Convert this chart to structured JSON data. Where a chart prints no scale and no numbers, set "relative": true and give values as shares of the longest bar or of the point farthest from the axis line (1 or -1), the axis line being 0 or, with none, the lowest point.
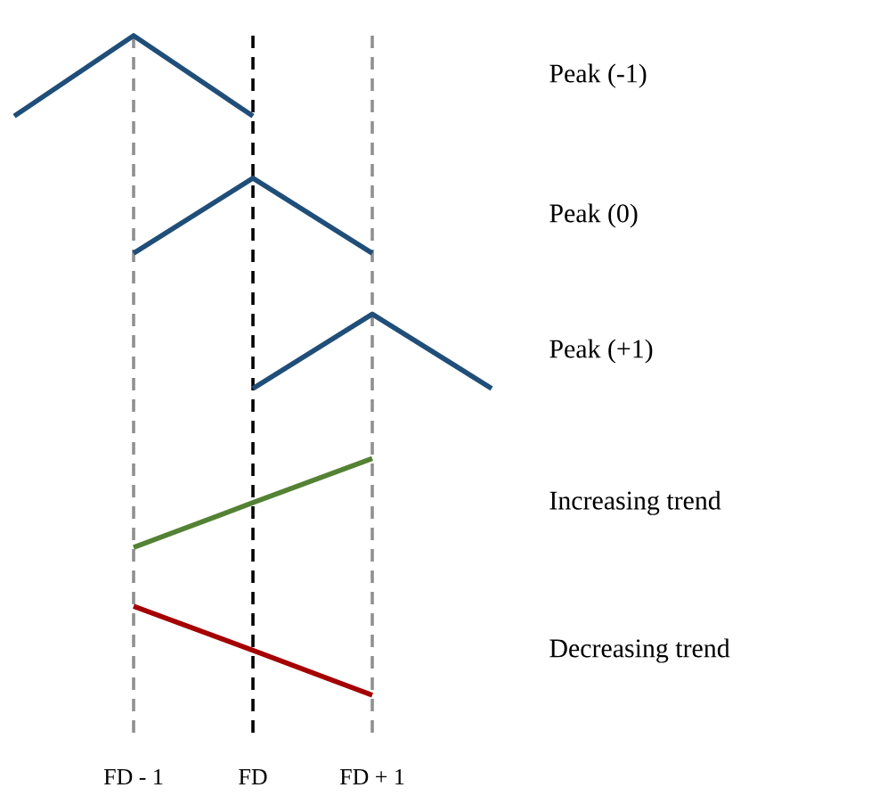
{
  "chart_data": {
    "type": "line",
    "relative": true,
    "categories": [
      null,
      "FD - 1",
      "FD",
      "FD + 1",
      null
    ],
    "series": [
      {
        "name": "Peak (-1)",
        "color": "#1f4e79",
        "values": [
          0.878,
          1,
          0.878,
          null,
          null
        ]
      },
      {
        "name": "Peak (0)",
        "color": "#1f4e79",
        "values": [
          null,
          0.67,
          0.784,
          0.67,
          null
        ]
      },
      {
        "name": "Peak (+1)",
        "color": "#1f4e79",
        "values": [
          null,
          null,
          0.465,
          0.578,
          0.465
        ]
      },
      {
        "name": "Increasing trend",
        "color": "#548235",
        "values": [
          null,
          0.224,
          0.292,
          0.359,
          null
        ]
      },
      {
        "name": "Decreasing trend",
        "color": "#a50000",
        "values": [
          null,
          0.135,
          0.068,
          0,
          null
        ]
      }
    ],
    "ref_lines": [
      {
        "axis": "x",
        "value": "FD - 1",
        "color": "#909090",
        "line_style": "dashed"
      },
      {
        "axis": "x",
        "value": "FD",
        "color": "#000000",
        "line_style": "dashed"
      },
      {
        "axis": "x",
        "value": "FD + 1",
        "color": "#909090",
        "line_style": "dashed"
      }
    ]
  }
}
